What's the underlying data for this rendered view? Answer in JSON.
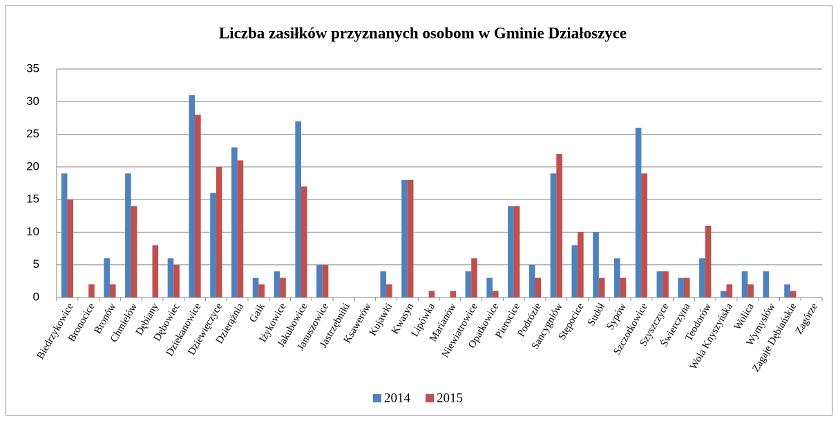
{
  "chart_data": {
    "type": "bar",
    "title": "Liczba zasiłków przyznanych osobom w Gminie Działoszyce",
    "categories": [
      "Biedrzykowice",
      "Bronocice",
      "Bronów",
      "Chmielów",
      "Dębiany",
      "Dębowiec",
      "Dziekanowice",
      "Dziewięczyce",
      "Dzierążnia",
      "Gaik",
      "Iżykowice",
      "Jakubowice",
      "Januszowice",
      "Jastrzębniki",
      "Ksawerów",
      "Kujawki",
      "Kwasyn",
      "Lipówka",
      "Marianów",
      "Niewiatrowice",
      "Opatkowice",
      "Pierocice",
      "Podrózie",
      "Sancygniów",
      "Stępocice",
      "Sudół",
      "Sypów",
      "Szczotkowice",
      "Szyszczyce",
      "Świerczyna",
      "Teodorów",
      "Wola Knyszyńska",
      "Wolica",
      "Wymysłów",
      "Zagaje Dębiańskie",
      "Zagórze"
    ],
    "series": [
      {
        "name": "2014",
        "color": "#4f81bd",
        "values": [
          19,
          0,
          6,
          19,
          0,
          6,
          31,
          16,
          23,
          3,
          4,
          27,
          5,
          0,
          0,
          4,
          18,
          0,
          0,
          4,
          3,
          14,
          5,
          19,
          8,
          10,
          6,
          26,
          4,
          3,
          6,
          1,
          4,
          4,
          2,
          0
        ]
      },
      {
        "name": "2015",
        "color": "#c0504d",
        "values": [
          15,
          2,
          2,
          14,
          8,
          5,
          28,
          20,
          21,
          2,
          3,
          17,
          5,
          0,
          0,
          2,
          18,
          1,
          1,
          6,
          1,
          14,
          3,
          22,
          10,
          3,
          3,
          19,
          4,
          3,
          11,
          2,
          2,
          0,
          1,
          0
        ]
      }
    ],
    "ylim": [
      0,
      35
    ],
    "yticks": [
      0,
      5,
      10,
      15,
      20,
      25,
      30,
      35
    ],
    "grid": true,
    "legend": "bottom"
  }
}
